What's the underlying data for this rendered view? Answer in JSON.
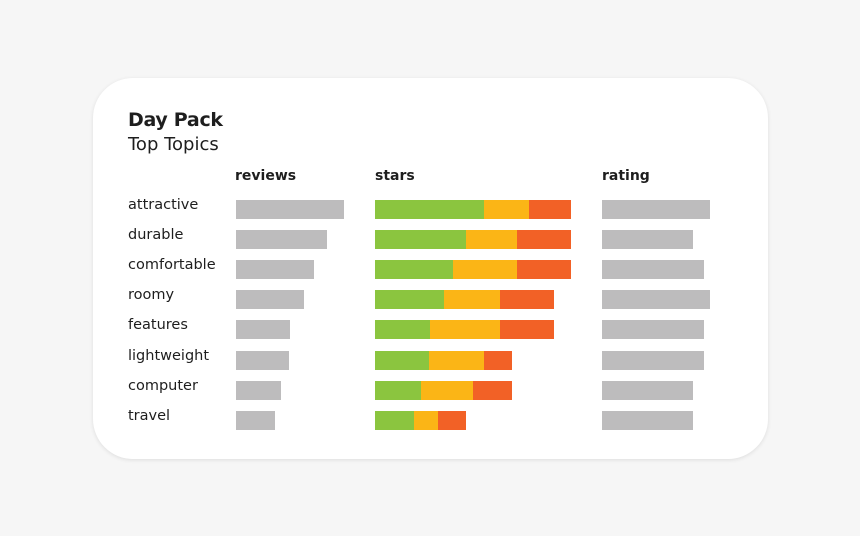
{
  "title": "Day Pack",
  "subtitle": "Top Topics",
  "columns": {
    "reviews": "reviews",
    "stars": "stars",
    "rating": "rating"
  },
  "colors": {
    "positive": "#8bc53f",
    "neutral": "#fbb516",
    "negative": "#f26126",
    "neutral_bar": "#bdbcbd"
  },
  "chart_data": {
    "type": "bar",
    "title": "Day Pack",
    "subtitle": "Top Topics",
    "categories": [
      "attractive",
      "durable",
      "comfortable",
      "roomy",
      "features",
      "lightweight",
      "computer",
      "travel"
    ],
    "reviews": [
      1.0,
      0.84,
      0.72,
      0.63,
      0.5,
      0.49,
      0.42,
      0.36
    ],
    "stars": [
      {
        "green": 0.555,
        "yellow": 0.23,
        "orange": 0.215
      },
      {
        "green": 0.465,
        "yellow": 0.26,
        "orange": 0.275
      },
      {
        "green": 0.4,
        "yellow": 0.325,
        "orange": 0.275
      },
      {
        "green": 0.35,
        "yellow": 0.285,
        "orange": 0.275
      },
      {
        "green": 0.28,
        "yellow": 0.355,
        "orange": 0.275
      },
      {
        "green": 0.275,
        "yellow": 0.28,
        "orange": 0.145
      },
      {
        "green": 0.235,
        "yellow": 0.265,
        "orange": 0.2
      },
      {
        "green": 0.2,
        "yellow": 0.12,
        "orange": 0.145
      }
    ],
    "rating": [
      1.0,
      0.84,
      0.94,
      1.0,
      0.94,
      0.94,
      0.84,
      0.84
    ]
  }
}
